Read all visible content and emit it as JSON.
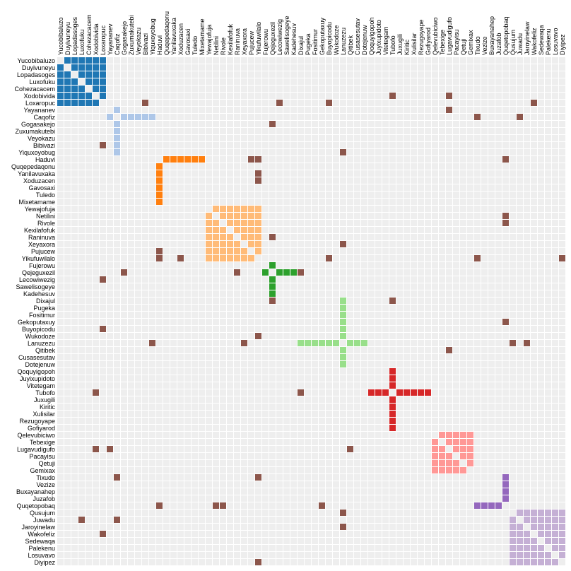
{
  "chart_data": {
    "type": "heatmap",
    "title": "",
    "names": [
      "Yucobibaluzo",
      "Duyivuneyu",
      "Lopadasoges",
      "Luxofuku",
      "Cohezacacem",
      "Xodobivida",
      "Loxaropuc",
      "Yayananev",
      "Caqofiz",
      "Gogasakejo",
      "Zuxumakutebi",
      "Veyokazu",
      "Bibivazi",
      "Yiquxoyobug",
      "Haduvi",
      "Quqepedaqonu",
      "Yanilavuxaka",
      "Xoduzacen",
      "Gavosaxi",
      "Tuledo",
      "Mixetamame",
      "Yewajofuja",
      "Netilini",
      "Rivole",
      "Kexilafofuk",
      "Raninuva",
      "Xeyaxora",
      "Pujucew",
      "Yikufuwilalo",
      "Fujerowu",
      "Qejeguxezil",
      "Lecowiwezig",
      "Sawelisogeye",
      "Kadehesuv",
      "Dixajul",
      "Pugeka",
      "Fositimur",
      "Gekoputaxuy",
      "Buyopicodu",
      "Wukodoze",
      "Lanuzezu",
      "Qitibek",
      "Cusasesutav",
      "Dotejenuw",
      "Qoquyigopoh",
      "Juyixupidoto",
      "Vitetegam",
      "Tubofo",
      "Juxugili",
      "Kiritic",
      "Xulisilar",
      "Rezugoyape",
      "Gofiyarod",
      "Qelevubiciwo",
      "Tebexige",
      "Lugavudigufo",
      "Pacayisu",
      "Qetuji",
      "Gemixax",
      "Tixudo",
      "Vezize",
      "Buxayanahep",
      "Juzafob",
      "Quqetopobaq",
      "Qusujum",
      "Juwadu",
      "Jaroyinelaw",
      "Wakofeliz",
      "Sedewaqa",
      "Palekenu",
      "Losuvavo",
      "Diyipez"
    ],
    "groups": [
      {
        "color": "#1f77b4",
        "members": [
          0,
          1,
          2,
          3,
          4,
          5,
          6
        ],
        "pattern": "complete"
      },
      {
        "color": "#aec7e8",
        "members": [
          7,
          8,
          9,
          10,
          11,
          12,
          13
        ],
        "pattern": "star",
        "hub": 8
      },
      {
        "color": "#ff7f0e",
        "members": [
          14,
          15,
          16,
          17,
          18,
          19,
          20
        ],
        "pattern": "star",
        "hub": 14
      },
      {
        "color": "#ffbb78",
        "members": [
          21,
          22,
          23,
          24,
          25,
          26,
          27,
          28
        ],
        "pattern": "complete"
      },
      {
        "color": "#2ca02c",
        "members": [
          29,
          30,
          31,
          32,
          33
        ],
        "pattern": "star",
        "hub": 30
      },
      {
        "color": "#98df8a",
        "members": [
          34,
          35,
          36,
          37,
          38,
          39,
          40,
          41,
          42,
          43
        ],
        "pattern": "star",
        "hub": 40
      },
      {
        "color": "#d62728",
        "members": [
          44,
          45,
          46,
          47,
          48,
          49,
          50,
          51,
          52
        ],
        "pattern": "star",
        "hub": 47
      },
      {
        "color": "#ff9896",
        "members": [
          53,
          54,
          55,
          56,
          57,
          58
        ],
        "pattern": "complete"
      },
      {
        "color": "#9467bd",
        "members": [
          59,
          60,
          61,
          62,
          63
        ],
        "pattern": "star",
        "hub": 63
      },
      {
        "color": "#c5b0d5",
        "members": [
          64,
          65,
          66,
          67,
          68,
          69,
          70,
          71
        ],
        "pattern": "complete"
      }
    ],
    "inter_group_color": "#8c564b",
    "inter_group_links": [
      [
        5,
        47
      ],
      [
        5,
        55
      ],
      [
        6,
        12
      ],
      [
        6,
        31
      ],
      [
        6,
        38
      ],
      [
        6,
        67
      ],
      [
        7,
        55
      ],
      [
        8,
        59
      ],
      [
        8,
        65
      ],
      [
        9,
        30
      ],
      [
        12,
        6
      ],
      [
        13,
        40
      ],
      [
        14,
        27
      ],
      [
        14,
        28
      ],
      [
        14,
        63
      ],
      [
        16,
        28
      ],
      [
        17,
        28
      ],
      [
        22,
        63
      ],
      [
        23,
        63
      ],
      [
        25,
        30
      ],
      [
        26,
        40
      ],
      [
        27,
        14
      ],
      [
        28,
        14
      ],
      [
        28,
        17
      ],
      [
        28,
        38
      ],
      [
        28,
        59
      ],
      [
        28,
        71
      ],
      [
        30,
        9
      ],
      [
        30,
        25
      ],
      [
        30,
        34
      ],
      [
        31,
        6
      ],
      [
        34,
        30
      ],
      [
        34,
        47
      ],
      [
        37,
        63
      ],
      [
        38,
        6
      ],
      [
        39,
        28
      ],
      [
        40,
        13
      ],
      [
        40,
        26
      ],
      [
        40,
        64
      ],
      [
        40,
        66
      ],
      [
        41,
        55
      ],
      [
        47,
        5
      ],
      [
        47,
        34
      ],
      [
        55,
        5
      ],
      [
        55,
        7
      ],
      [
        55,
        41
      ],
      [
        59,
        8
      ],
      [
        59,
        28
      ],
      [
        63,
        14
      ],
      [
        63,
        22
      ],
      [
        63,
        23
      ],
      [
        63,
        37
      ],
      [
        64,
        40
      ],
      [
        65,
        3
      ],
      [
        65,
        8
      ],
      [
        66,
        40
      ],
      [
        67,
        6
      ],
      [
        71,
        28
      ]
    ]
  }
}
